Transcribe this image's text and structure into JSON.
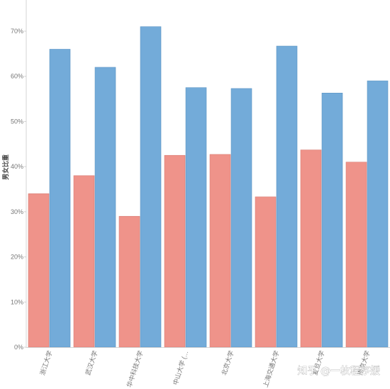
{
  "chart_data": {
    "type": "bar",
    "title": "",
    "xlabel": "",
    "ylabel": "男女比重",
    "ylim": [
      0,
      0.7
    ],
    "yticks": [
      0,
      0.1,
      0.2,
      0.3,
      0.4,
      0.5,
      0.6,
      0.7
    ],
    "ytick_labels": [
      "0%",
      "10%",
      "20%",
      "30%",
      "40%",
      "50%",
      "60%",
      "70%"
    ],
    "grid": false,
    "legend": "none",
    "categories": [
      "浙江大学",
      "武汉大学",
      "华中科技大学",
      "中山大学 (…",
      "北京大学",
      "上海交通大学",
      "复旦大学",
      "南京大学"
    ],
    "series": [
      {
        "color": "#ef938a",
        "values": [
          0.34,
          0.38,
          0.29,
          0.425,
          0.427,
          0.333,
          0.437,
          0.41
        ]
      },
      {
        "color": "#73abd9",
        "values": [
          0.66,
          0.62,
          0.71,
          0.575,
          0.573,
          0.667,
          0.563,
          0.59
        ]
      }
    ]
  },
  "watermark": {
    "text": "知乎 @一枚程序媛"
  }
}
